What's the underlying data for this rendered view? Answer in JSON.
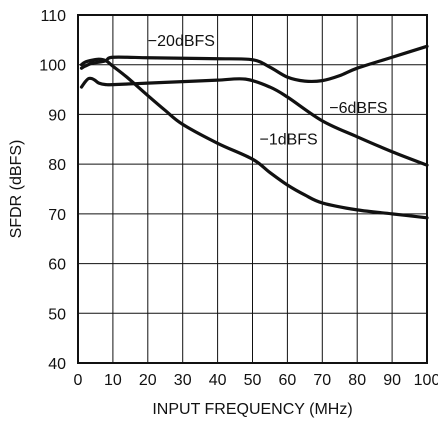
{
  "chart_data": {
    "type": "line",
    "title": "",
    "xlabel": "INPUT FREQUENCY (MHz)",
    "ylabel": "SFDR (dBFS)",
    "xlim": [
      0,
      100
    ],
    "ylim": [
      40,
      110
    ],
    "xticks": [
      0,
      10,
      20,
      30,
      40,
      50,
      60,
      70,
      80,
      90,
      100
    ],
    "yticks": [
      40,
      50,
      60,
      70,
      80,
      90,
      100,
      110
    ],
    "xtick_labels": [
      "0",
      "10",
      "20",
      "30",
      "40",
      "50",
      "60",
      "70",
      "80",
      "90",
      "100"
    ],
    "ytick_labels": [
      "40",
      "50",
      "60",
      "70",
      "80",
      "90",
      "100",
      "110"
    ],
    "grid": true,
    "legend": "none",
    "series": [
      {
        "name": "−20dBFS",
        "x": [
          1,
          2,
          4,
          6,
          8,
          10,
          20,
          30,
          40,
          50,
          55,
          60,
          65,
          70,
          75,
          80,
          90,
          100
        ],
        "y": [
          99.3,
          99.7,
          100.3,
          100.5,
          100.8,
          101.5,
          101.4,
          101.3,
          101.2,
          101.0,
          99.5,
          97.5,
          96.7,
          96.8,
          97.8,
          99.3,
          101.5,
          103.7
        ]
      },
      {
        "name": "−6dBFS",
        "x": [
          1,
          2,
          3,
          4,
          5,
          6,
          8,
          10,
          20,
          30,
          40,
          48,
          55,
          60,
          70,
          80,
          90,
          100
        ],
        "y": [
          95.5,
          96.5,
          97.2,
          97.2,
          96.8,
          96.3,
          96.0,
          96.0,
          96.3,
          96.6,
          96.9,
          97.1,
          95.5,
          93.5,
          88.7,
          85.5,
          82.5,
          79.8
        ]
      },
      {
        "name": "−1dBFS",
        "x": [
          1,
          2,
          4,
          6,
          8,
          10,
          14,
          20,
          25,
          30,
          40,
          50,
          55,
          60,
          65,
          70,
          80,
          90,
          100
        ],
        "y": [
          100.0,
          100.5,
          100.9,
          101.1,
          100.8,
          99.7,
          97.5,
          93.8,
          90.8,
          88.0,
          84.2,
          81.0,
          78.3,
          75.8,
          73.8,
          72.2,
          70.8,
          70.0,
          69.2
        ]
      }
    ],
    "annotations": [
      {
        "text": "−20dBFS",
        "series": 0,
        "x": 20,
        "y": 103.8
      },
      {
        "text": "−6dBFS",
        "series": 1,
        "x": 72,
        "y": 90.3
      },
      {
        "text": "−1dBFS",
        "series": 2,
        "x": 52,
        "y": 84.0
      }
    ]
  }
}
